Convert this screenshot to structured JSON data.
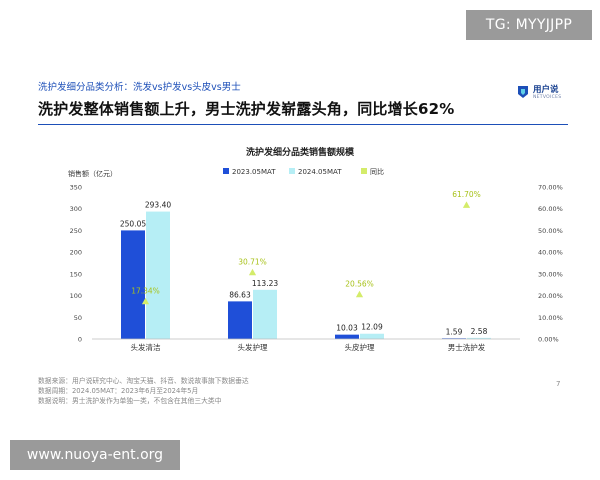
{
  "slide": {
    "subtitle": "洗护发细分品类分析：洗发vs护发vs头皮vs男士",
    "headline": "洗护发整体销售额上升，男士洗护发崭露头角，同比增长62%",
    "logo_text": "用户说",
    "logo_sub": "NETVOICES",
    "page_number": "7",
    "footnotes": [
      "数据来源：用户说研究中心、淘宝天猫、抖音、数说故事旗下数据垂达",
      "数据周期：2024.05MAT：2023年6月至2024年5月",
      "数据说明：男士洗护发作为单独一类，不包含在其他三大类中"
    ]
  },
  "watermarks": {
    "top_right": "TG: MYYJJPP",
    "bottom_left": "www.nuoya-ent.org"
  },
  "colors": {
    "series_2023": "#1f4fd8",
    "series_2024": "#b6eef5",
    "growth": "#d4ec6a",
    "accent": "#1d4fb8"
  },
  "chart_data": {
    "type": "bar",
    "title": "洗护发细分品类销售额规模",
    "ylabel": "销售额（亿元）",
    "categories": [
      "头发清洁",
      "头发护理",
      "头皮护理",
      "男士洗护发"
    ],
    "series": [
      {
        "name": "2023.05MAT",
        "values": [
          250.05,
          86.63,
          10.03,
          1.59
        ],
        "labels": [
          "250.05",
          "86.63",
          "10.03",
          "1.59"
        ]
      },
      {
        "name": "2024.05MAT",
        "values": [
          293.4,
          113.23,
          12.09,
          2.58
        ],
        "labels": [
          "293.40",
          "113.23",
          "12.09",
          "2.58"
        ]
      }
    ],
    "growth_series": {
      "name": "同比",
      "values": [
        17.34,
        30.71,
        20.56,
        61.7
      ],
      "labels": [
        "17.34%",
        "30.71%",
        "20.56%",
        "61.70%"
      ]
    },
    "ylim": [
      0,
      350
    ],
    "y_ticks": [
      "0",
      "50",
      "100",
      "150",
      "200",
      "250",
      "300",
      "350"
    ],
    "y2lim": [
      0,
      70
    ],
    "y2_ticks": [
      "0.00%",
      "10.00%",
      "20.00%",
      "30.00%",
      "40.00%",
      "50.00%",
      "60.00%",
      "70.00%"
    ],
    "legend_position": "top-center",
    "grid": false
  }
}
